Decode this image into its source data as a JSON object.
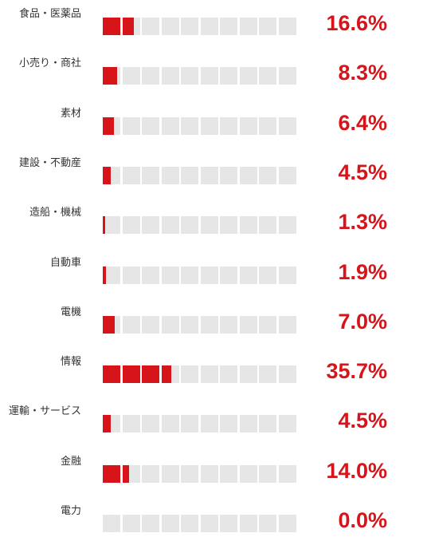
{
  "chart_data": {
    "type": "bar",
    "categories": [
      "食品・医薬品",
      "小売り・商社",
      "素材",
      "建設・不動産",
      "造船・機械",
      "自動車",
      "電機",
      "情報",
      "運輸・サービス",
      "金融",
      "電力"
    ],
    "values": [
      16.6,
      8.3,
      6.4,
      4.5,
      1.3,
      1.9,
      7.0,
      35.7,
      4.5,
      14.0,
      0.0
    ],
    "value_labels": [
      "16.6%",
      "8.3%",
      "6.4%",
      "4.5%",
      "1.3%",
      "1.9%",
      "7.0%",
      "35.7%",
      "4.5%",
      "14.0%",
      "0.0%"
    ],
    "unit": "%",
    "max": 100,
    "cells": 10,
    "title": "",
    "xlabel": "",
    "ylabel": "",
    "colors": {
      "fill": "#d7141a",
      "empty": "#e6e6e6",
      "value_text": "#d7141a",
      "label_text": "#333333"
    }
  }
}
